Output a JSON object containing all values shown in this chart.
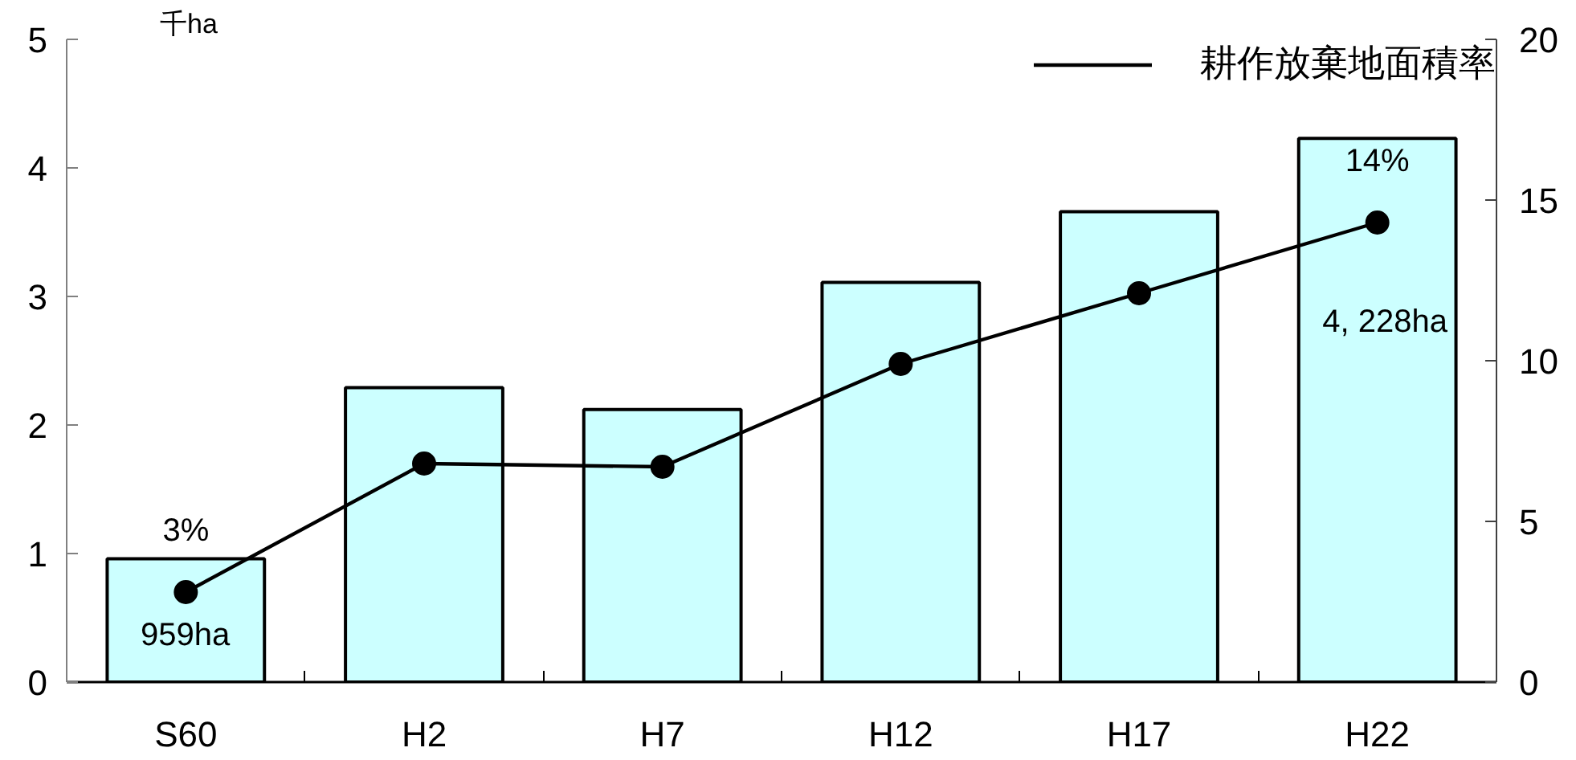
{
  "chart_data": {
    "type": "bar",
    "categories": [
      "S60",
      "H2",
      "H7",
      "H12",
      "H17",
      "H22"
    ],
    "series": [
      {
        "color": "#ccffff",
        "values": [
          0.96,
          2.29,
          2.12,
          3.11,
          3.66,
          4.23
        ]
      },
      {
        "type": "line",
        "name": "耕作放棄地面積率",
        "color": "#000000",
        "axis": "y2",
        "marker": "circle",
        "line_style": "solid",
        "values": [
          2.8,
          6.8,
          6.7,
          9.9,
          12.1,
          14.3
        ],
        "value_labels": [
          "3%",
          null,
          null,
          null,
          null,
          "14%"
        ]
      }
    ],
    "annotations": [
      "959ha",
      "4, 228ha"
    ],
    "ylabel": "千ha",
    "ylim": [
      0,
      5
    ],
    "yticks": [
      0,
      1,
      2,
      3,
      4,
      5
    ],
    "y2lim": [
      0,
      20
    ],
    "y2ticks": [
      0,
      5,
      10,
      15,
      20
    ],
    "grid": false,
    "legend": "top right"
  }
}
